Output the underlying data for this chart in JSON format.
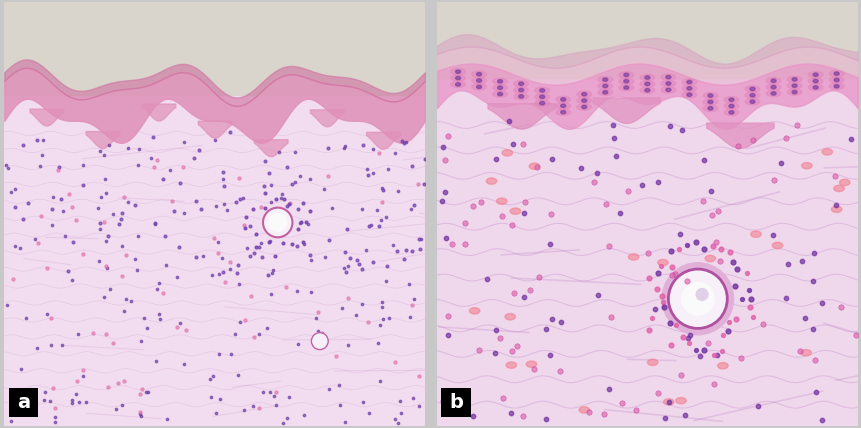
{
  "figure_width": 8.62,
  "figure_height": 4.28,
  "dpi": 100,
  "border_color": "#000000",
  "border_linewidth": 2,
  "background_color": "#c8c8c8",
  "label_a": "a",
  "label_b": "b",
  "label_fontsize": 14,
  "label_color": "#ffffff",
  "label_bg_color": "#000000",
  "slide_bg": "#d9d4cc",
  "dermis_bg_a": "#f2ddf0",
  "dermis_bg_b": "#f0d8ec",
  "epidermis_color": "#e090b8",
  "stratum_corneum_color": "#d070a0",
  "collagen_color": "#c898c8",
  "cell_purple": "#6030a0",
  "cell_pink": "#e060a0",
  "vessel_fill": "#f8f0f8",
  "vessel_edge": "#c060a0",
  "rbc_color": "#f08090"
}
